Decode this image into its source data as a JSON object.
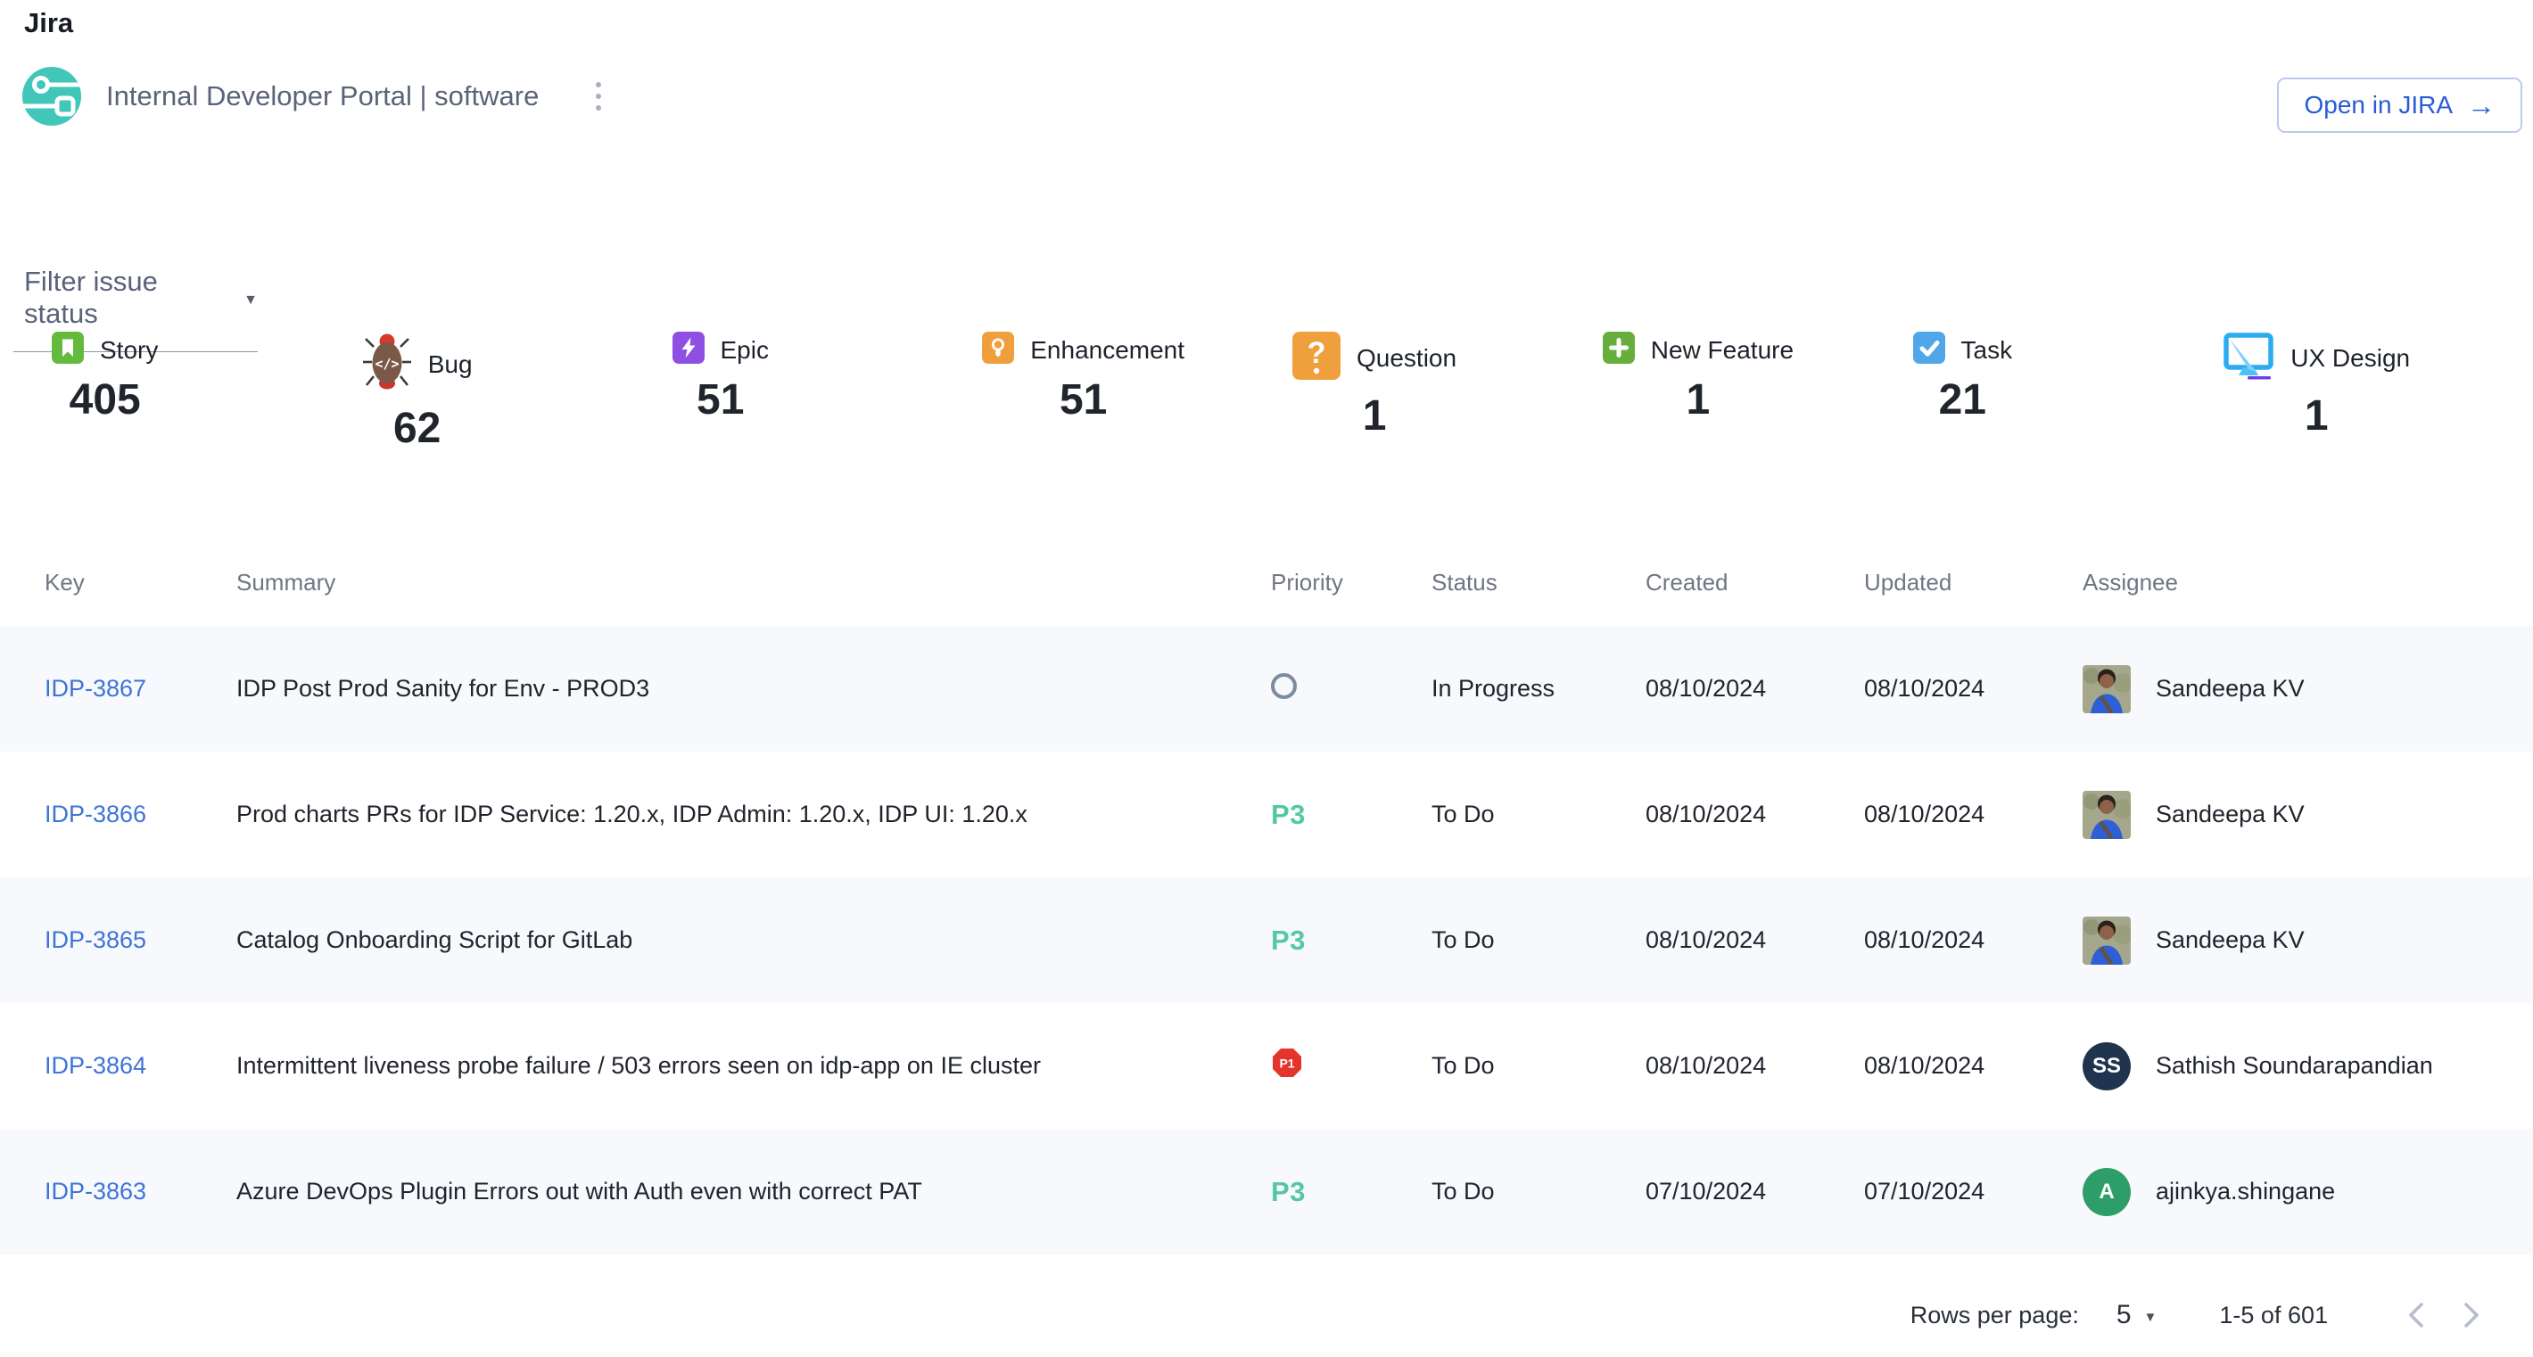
{
  "header": {
    "page_title": "Jira",
    "project_name": "Internal Developer Portal | software",
    "open_button_label": "Open in JIRA"
  },
  "filter": {
    "label": "Filter issue status"
  },
  "counters": [
    {
      "type": "Story",
      "count": "405",
      "icon": "story-icon",
      "color": "#63BA3C"
    },
    {
      "type": "Bug",
      "count": "62",
      "icon": "bug-icon",
      "color": "#7A5948"
    },
    {
      "type": "Epic",
      "count": "51",
      "icon": "epic-icon",
      "color": "#8F4FE3"
    },
    {
      "type": "Enhancement",
      "count": "51",
      "icon": "enhancement-icon",
      "color": "#EFA03C"
    },
    {
      "type": "Question",
      "count": "1",
      "icon": "question-icon",
      "color": "#EFA03C"
    },
    {
      "type": "New Feature",
      "count": "1",
      "icon": "new-feature-icon",
      "color": "#68AE3D"
    },
    {
      "type": "Task",
      "count": "21",
      "icon": "task-icon",
      "color": "#4FA6E9"
    },
    {
      "type": "UX Design",
      "count": "1",
      "icon": "ux-design-icon",
      "color": "#2AABF2"
    }
  ],
  "table": {
    "columns": [
      "Key",
      "Summary",
      "Priority",
      "Status",
      "Created",
      "Updated",
      "Assignee"
    ],
    "rows": [
      {
        "key": "IDP-3867",
        "summary": "IDP Post Prod Sanity for Env - PROD3",
        "priority": "none",
        "status": "In Progress",
        "created": "08/10/2024",
        "updated": "08/10/2024",
        "assignee": "Sandeepa KV",
        "avatar": "photo",
        "initials": "",
        "avatar_color": ""
      },
      {
        "key": "IDP-3866",
        "summary": "Prod charts PRs for IDP Service: 1.20.x, IDP Admin: 1.20.x, IDP UI: 1.20.x",
        "priority": "P3",
        "status": "To Do",
        "created": "08/10/2024",
        "updated": "08/10/2024",
        "assignee": "Sandeepa KV",
        "avatar": "photo",
        "initials": "",
        "avatar_color": ""
      },
      {
        "key": "IDP-3865",
        "summary": "Catalog Onboarding Script for GitLab",
        "priority": "P3",
        "status": "To Do",
        "created": "08/10/2024",
        "updated": "08/10/2024",
        "assignee": "Sandeepa KV",
        "avatar": "photo",
        "initials": "",
        "avatar_color": ""
      },
      {
        "key": "IDP-3864",
        "summary": "Intermittent liveness probe failure / 503 errors seen on idp-app on IE cluster",
        "priority": "P1",
        "status": "To Do",
        "created": "08/10/2024",
        "updated": "08/10/2024",
        "assignee": "Sathish Soundarapandian",
        "avatar": "initials",
        "initials": "SS",
        "avatar_color": "#20334F"
      },
      {
        "key": "IDP-3863",
        "summary": "Azure DevOps Plugin Errors out with Auth even with correct PAT",
        "priority": "P3",
        "status": "To Do",
        "created": "07/10/2024",
        "updated": "07/10/2024",
        "assignee": "ajinkya.shingane",
        "avatar": "initials",
        "initials": "A",
        "avatar_color": "#2E9E68"
      }
    ]
  },
  "pagination": {
    "rows_per_page_label": "Rows per page:",
    "rows_per_page_value": "5",
    "range_label": "1-5 of 601"
  },
  "colors": {
    "link_blue": "#3E74D8",
    "button_blue": "#2A5BD7",
    "stripe": "#F7F9FC",
    "p3_teal": "#55C7A4",
    "p1_red": "#E5342B",
    "logo_teal": "#41C6BA"
  }
}
